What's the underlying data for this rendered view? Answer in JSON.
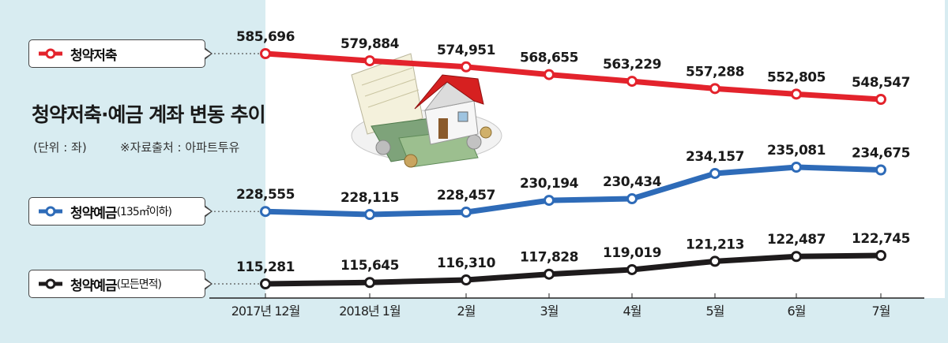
{
  "header": {
    "title": "청약저축·예금 계좌 변동 추이",
    "unit": "(단위 : 좌)",
    "source": "※자료출처 : 아파트투유"
  },
  "legend": [
    {
      "label": "청약저축",
      "sub": "",
      "color": "#e3232c"
    },
    {
      "label": "청약예금",
      "sub": "(135㎡이하)",
      "color": "#2e6bb8"
    },
    {
      "label": "청약예금",
      "sub": "(모든면적)",
      "color": "#1e1b1c"
    }
  ],
  "chart_data": {
    "type": "line",
    "categories": [
      "2017년 12월",
      "2018년 1월",
      "2월",
      "3월",
      "4월",
      "5월",
      "6월",
      "7월"
    ],
    "series": [
      {
        "name": "청약저축",
        "color": "#e3232c",
        "values": [
          585696,
          579884,
          574951,
          568655,
          563229,
          557288,
          552805,
          548547
        ],
        "labels": [
          "585,696",
          "579,884",
          "574,951",
          "568,655",
          "563,229",
          "557,288",
          "552,805",
          "548,547"
        ]
      },
      {
        "name": "청약예금(135㎡이하)",
        "color": "#2e6bb8",
        "values": [
          228555,
          228115,
          228457,
          230194,
          230434,
          234157,
          235081,
          234675
        ],
        "labels": [
          "228,555",
          "228,115",
          "228,457",
          "230,194",
          "230,434",
          "234,157",
          "235,081",
          "234,675"
        ]
      },
      {
        "name": "청약예금(모든면적)",
        "color": "#1e1b1c",
        "values": [
          115281,
          115645,
          116310,
          117828,
          119019,
          121213,
          122487,
          122745
        ],
        "labels": [
          "115,281",
          "115,645",
          "116,310",
          "117,828",
          "119,019",
          "121,213",
          "122,487",
          "122,745"
        ]
      }
    ],
    "title": "청약저축·예금 계좌 변동 추이",
    "grid": false,
    "legend_position": "left"
  }
}
